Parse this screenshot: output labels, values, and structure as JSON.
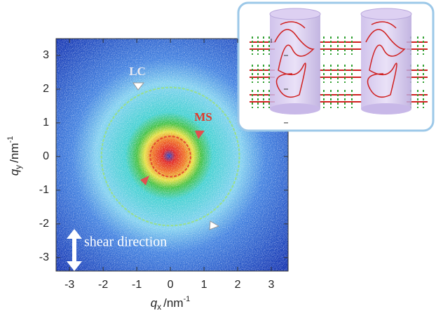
{
  "chart_data": {
    "type": "scattering-pattern",
    "xlabel": {
      "symbol": "q",
      "subscript": "x",
      "unit": "/nm",
      "exponent": "-1"
    },
    "ylabel": {
      "symbol": "q",
      "subscript": "y",
      "unit": "/nm",
      "exponent": "-1"
    },
    "xlim": [
      -3.4,
      3.5
    ],
    "ylim": [
      -3.4,
      3.5
    ],
    "xticks": [
      -3,
      -2,
      -1,
      0,
      1,
      2,
      3
    ],
    "yticks": [
      -3,
      -2,
      -1,
      0,
      1,
      2,
      3
    ],
    "rings": [
      {
        "label": "LC",
        "q": 2.05,
        "color": "#9be07a"
      },
      {
        "label": "MS",
        "q": 0.6,
        "color": "#e03a2a"
      }
    ],
    "annotation": "shear direction"
  }
}
